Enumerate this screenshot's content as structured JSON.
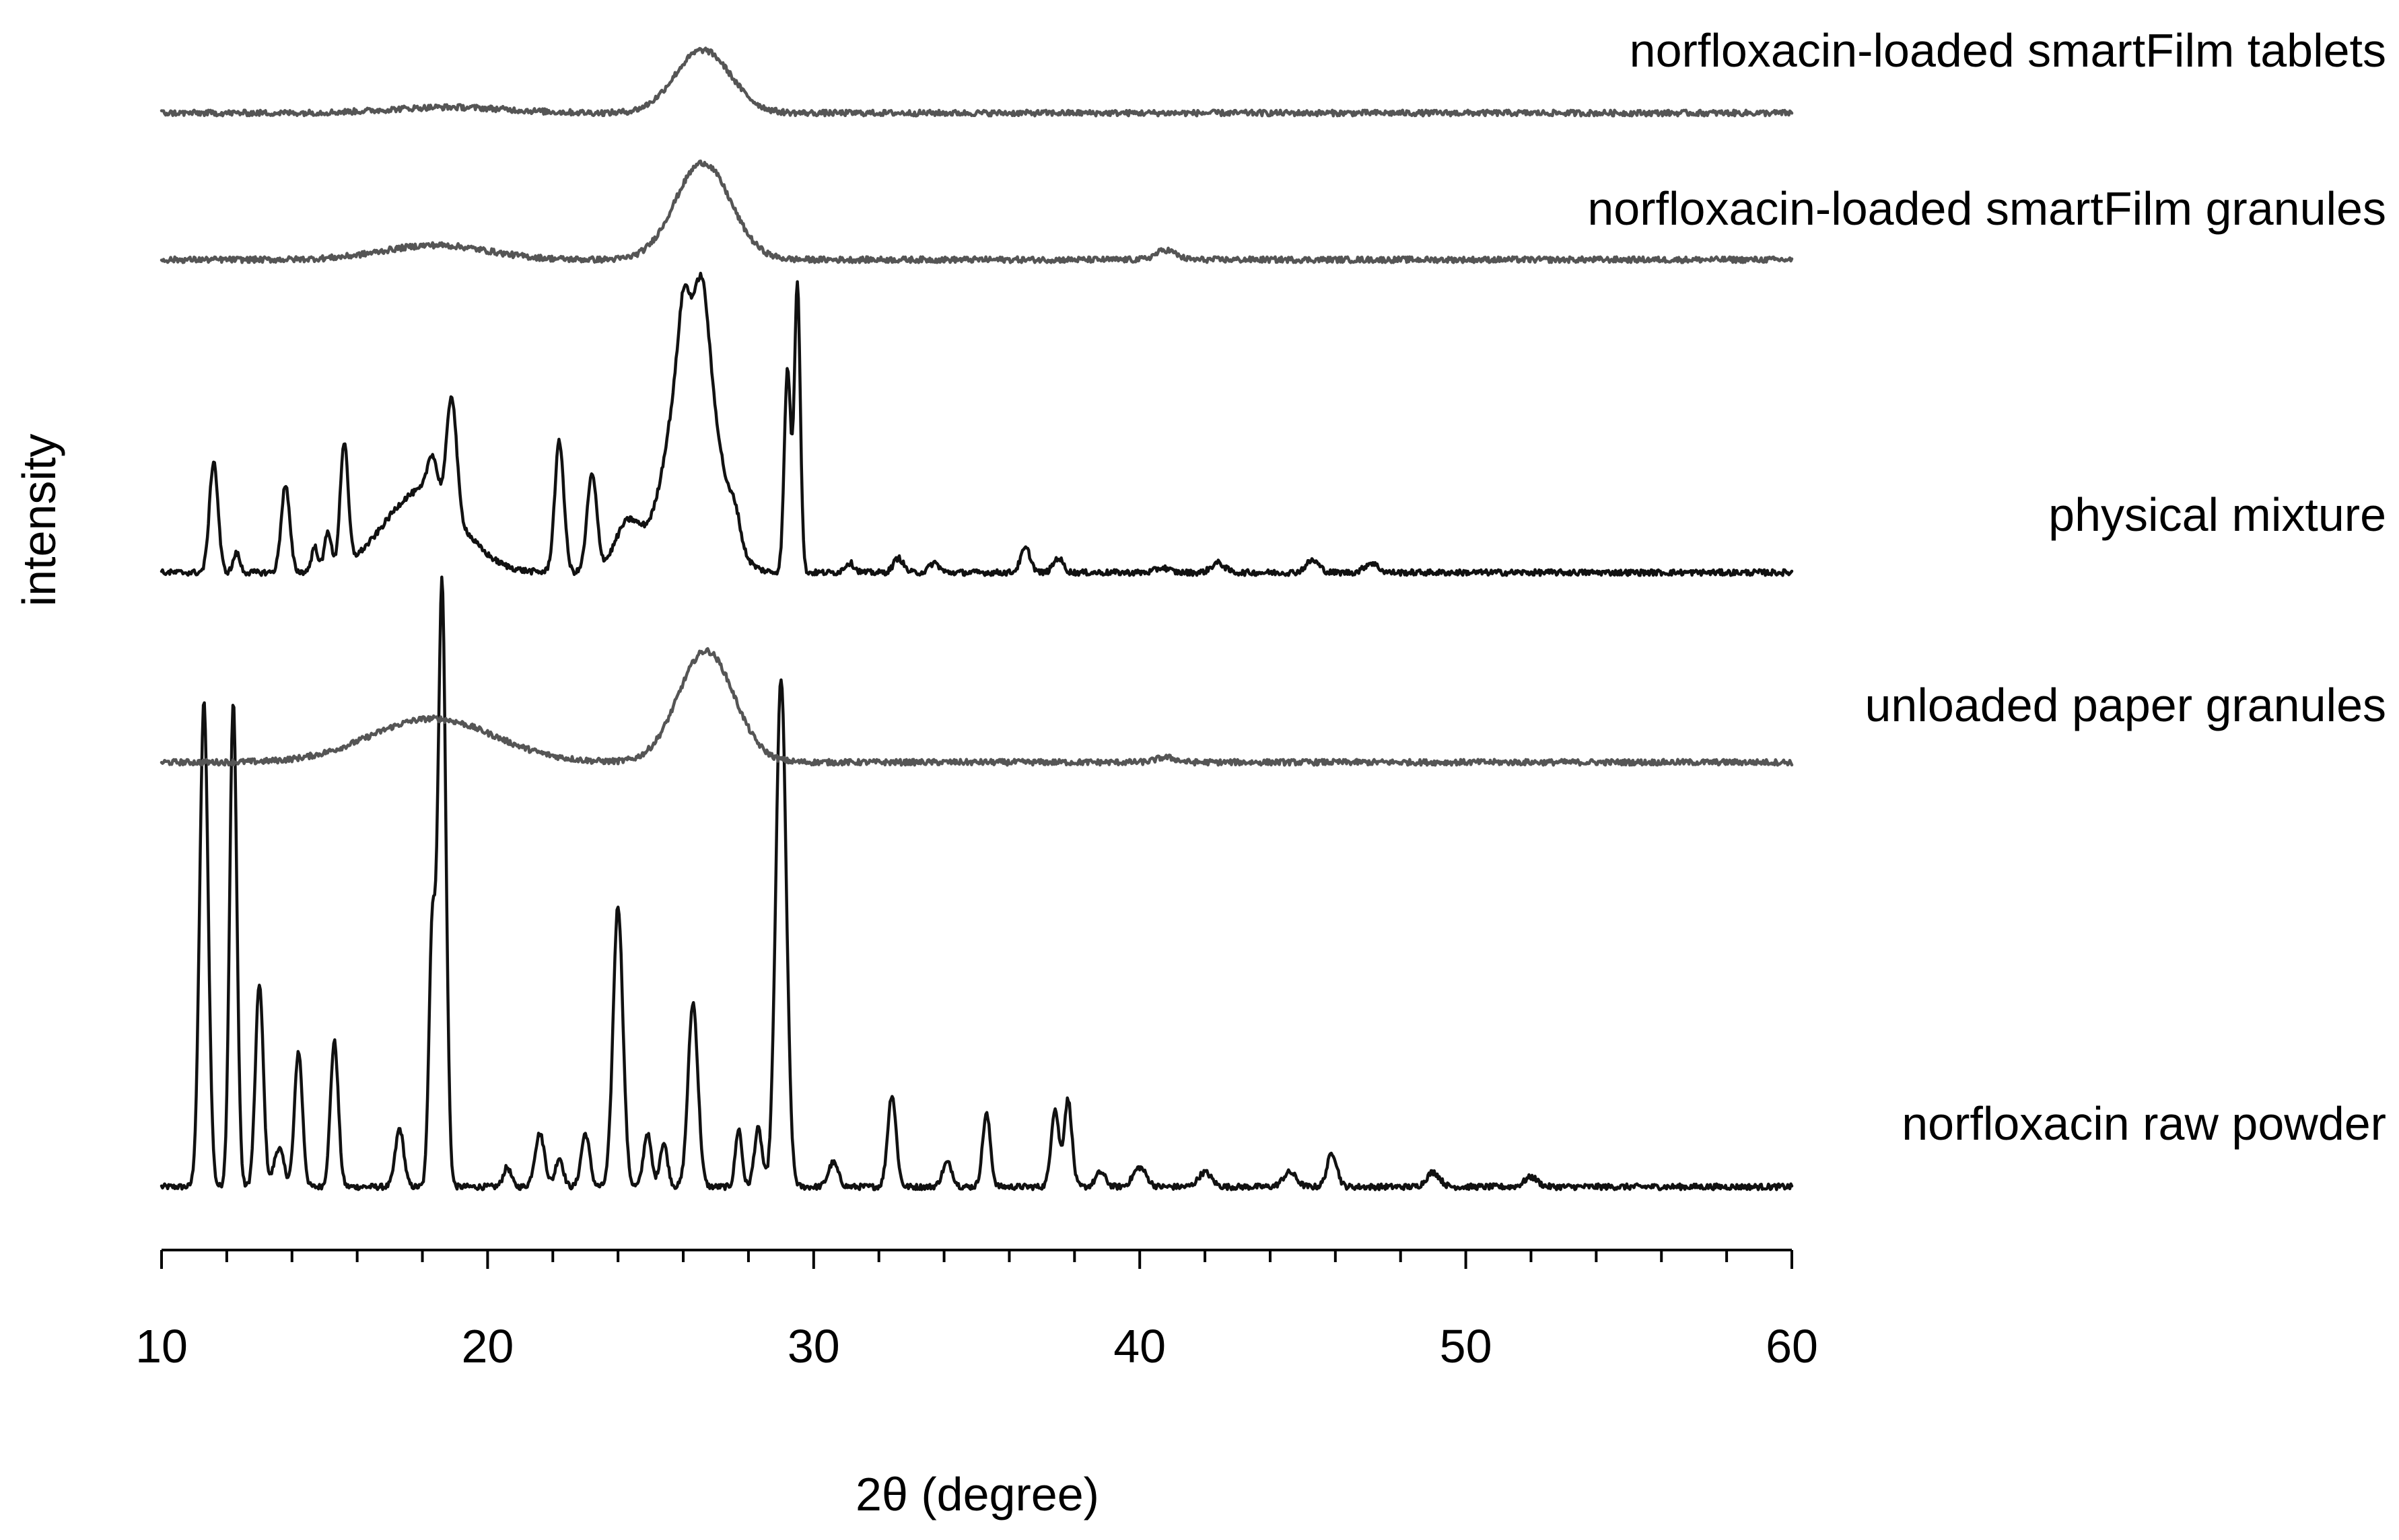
{
  "chart_data": {
    "type": "line",
    "title": "",
    "xlabel": "2θ (degree)",
    "ylabel": "intensity",
    "xlim": [
      10,
      60
    ],
    "x_ticks": [
      10,
      20,
      30,
      40,
      50,
      60
    ],
    "grid": false,
    "legend": "labels at right of each stacked trace",
    "stacked": true,
    "series": [
      {
        "name": "norfloxacin raw powder",
        "color": "#111111",
        "baseline": 0.05,
        "peaks": [
          {
            "x": 11.3,
            "h": 1.0,
            "w": 0.13
          },
          {
            "x": 12.2,
            "h": 1.0,
            "w": 0.11
          },
          {
            "x": 13.0,
            "h": 0.42,
            "w": 0.12
          },
          {
            "x": 13.6,
            "h": 0.08,
            "w": 0.15
          },
          {
            "x": 14.2,
            "h": 0.28,
            "w": 0.12
          },
          {
            "x": 15.3,
            "h": 0.3,
            "w": 0.12
          },
          {
            "x": 17.3,
            "h": 0.12,
            "w": 0.13
          },
          {
            "x": 18.3,
            "h": 0.52,
            "w": 0.1
          },
          {
            "x": 18.6,
            "h": 1.25,
            "w": 0.12
          },
          {
            "x": 20.6,
            "h": 0.04,
            "w": 0.12
          },
          {
            "x": 21.6,
            "h": 0.11,
            "w": 0.15
          },
          {
            "x": 22.2,
            "h": 0.06,
            "w": 0.12
          },
          {
            "x": 23.0,
            "h": 0.11,
            "w": 0.13
          },
          {
            "x": 24.0,
            "h": 0.58,
            "w": 0.15
          },
          {
            "x": 24.9,
            "h": 0.11,
            "w": 0.12
          },
          {
            "x": 25.4,
            "h": 0.09,
            "w": 0.12
          },
          {
            "x": 26.3,
            "h": 0.38,
            "w": 0.15
          },
          {
            "x": 27.7,
            "h": 0.12,
            "w": 0.1
          },
          {
            "x": 28.3,
            "h": 0.12,
            "w": 0.12
          },
          {
            "x": 29.0,
            "h": 1.05,
            "w": 0.16
          },
          {
            "x": 30.6,
            "h": 0.05,
            "w": 0.15
          },
          {
            "x": 32.4,
            "h": 0.19,
            "w": 0.13
          },
          {
            "x": 34.1,
            "h": 0.05,
            "w": 0.15
          },
          {
            "x": 35.3,
            "h": 0.15,
            "w": 0.12
          },
          {
            "x": 37.4,
            "h": 0.16,
            "w": 0.12
          },
          {
            "x": 37.8,
            "h": 0.18,
            "w": 0.12
          },
          {
            "x": 38.8,
            "h": 0.03,
            "w": 0.15
          },
          {
            "x": 40.0,
            "h": 0.04,
            "w": 0.2
          },
          {
            "x": 42.0,
            "h": 0.03,
            "w": 0.2
          },
          {
            "x": 44.6,
            "h": 0.03,
            "w": 0.2
          },
          {
            "x": 45.9,
            "h": 0.07,
            "w": 0.15
          },
          {
            "x": 49.0,
            "h": 0.03,
            "w": 0.2
          },
          {
            "x": 52.0,
            "h": 0.02,
            "w": 0.2
          }
        ]
      },
      {
        "name": "unloaded paper granules",
        "color": "#555555",
        "baseline": 0.0,
        "peaks": [
          {
            "x": 18.3,
            "h": 0.09,
            "w": 1.9
          },
          {
            "x": 26.7,
            "h": 0.23,
            "w": 0.85
          },
          {
            "x": 40.8,
            "h": 0.01,
            "w": 0.3
          }
        ]
      },
      {
        "name": "physical mixture",
        "color": "#111111",
        "baseline": 0.0,
        "peaks": [
          {
            "x": 11.6,
            "h": 0.23,
            "w": 0.13
          },
          {
            "x": 12.3,
            "h": 0.04,
            "w": 0.1
          },
          {
            "x": 13.8,
            "h": 0.18,
            "w": 0.13
          },
          {
            "x": 14.7,
            "h": 0.05,
            "w": 0.1
          },
          {
            "x": 15.1,
            "h": 0.08,
            "w": 0.1
          },
          {
            "x": 15.6,
            "h": 0.25,
            "w": 0.12
          },
          {
            "x": 18.0,
            "h": 0.17,
            "w": 1.15
          },
          {
            "x": 18.3,
            "h": 0.08,
            "w": 0.15
          },
          {
            "x": 18.9,
            "h": 0.24,
            "w": 0.15
          },
          {
            "x": 22.2,
            "h": 0.27,
            "w": 0.14
          },
          {
            "x": 23.2,
            "h": 0.2,
            "w": 0.15
          },
          {
            "x": 24.3,
            "h": 0.1,
            "w": 0.4
          },
          {
            "x": 26.3,
            "h": 0.53,
            "w": 0.7
          },
          {
            "x": 26.0,
            "h": 0.1,
            "w": 0.15
          },
          {
            "x": 26.6,
            "h": 0.12,
            "w": 0.18
          },
          {
            "x": 27.6,
            "h": 0.05,
            "w": 0.15
          },
          {
            "x": 29.2,
            "h": 0.42,
            "w": 0.1
          },
          {
            "x": 29.5,
            "h": 0.6,
            "w": 0.09
          },
          {
            "x": 31.1,
            "h": 0.02,
            "w": 0.15
          },
          {
            "x": 32.6,
            "h": 0.03,
            "w": 0.15
          },
          {
            "x": 33.7,
            "h": 0.02,
            "w": 0.15
          },
          {
            "x": 36.5,
            "h": 0.05,
            "w": 0.15
          },
          {
            "x": 37.5,
            "h": 0.03,
            "w": 0.15
          },
          {
            "x": 40.7,
            "h": 0.01,
            "w": 0.2
          },
          {
            "x": 42.4,
            "h": 0.02,
            "w": 0.2
          },
          {
            "x": 45.3,
            "h": 0.025,
            "w": 0.2
          },
          {
            "x": 47.1,
            "h": 0.02,
            "w": 0.2
          }
        ]
      },
      {
        "name": "norfloxacin-loaded smartFilm granules",
        "color": "#555555",
        "baseline": 0.0,
        "peaks": [
          {
            "x": 18.4,
            "h": 0.03,
            "w": 1.6
          },
          {
            "x": 26.6,
            "h": 0.2,
            "w": 0.85
          },
          {
            "x": 40.8,
            "h": 0.02,
            "w": 0.3
          }
        ]
      },
      {
        "name": "norfloxacin-loaded smartFilm tablets",
        "color": "#555555",
        "baseline": 0.0,
        "peaks": [
          {
            "x": 18.8,
            "h": 0.012,
            "w": 1.8
          },
          {
            "x": 26.6,
            "h": 0.13,
            "w": 0.85
          }
        ]
      }
    ]
  }
}
